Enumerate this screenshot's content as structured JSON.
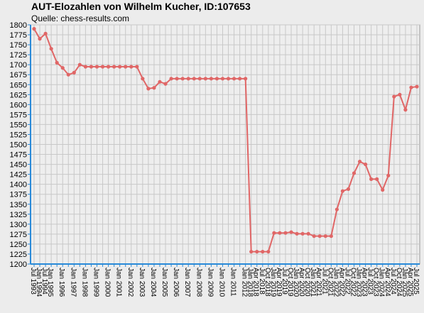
{
  "chart_data": {
    "type": "line",
    "title": "AUT-Elozahlen von Wilhelm Kucher, ID:107653",
    "subtitle": "Quelle: chess-results.com",
    "categories": [
      "Jul 1993",
      "Jan 1994",
      "Jul 1994",
      "Jan 1995",
      null,
      "Jan 1996",
      null,
      "Jan 1997",
      null,
      "Jan 1998",
      null,
      "Jan 1999",
      null,
      "Jan 2000",
      null,
      "Jan 2001",
      null,
      "Jan 2002",
      null,
      "Jan 2003",
      null,
      "Jan 2004",
      null,
      "Jan 2005",
      null,
      "Jan 2006",
      null,
      "Jan 2007",
      null,
      "Jan 2008",
      null,
      "Jan 2009",
      null,
      "Jan 2010",
      null,
      "Jan 2011",
      null,
      "Jan 2012",
      "Jan 2018",
      "Apr 2018",
      "Jul 2018",
      "Oct 2018",
      "Jan 2019",
      "Apr 2019",
      "Jul 2019",
      "Oct 2019",
      "Jan 2020",
      "Apr 2020",
      "Oct 2020",
      "Jan 2021",
      "Apr 2021",
      "Jul 2021",
      "Oct 2021",
      "Jan 2022",
      "Apr 2022",
      "Jul 2022",
      "Oct 2022",
      "Jan 2023",
      "Apr 2023",
      "Jul 2023",
      "Oct 2023",
      "Jan 2024",
      "Apr 2024",
      "Jul 2024",
      "Oct 2024",
      "Jan 2025",
      "Apr 2025",
      "Jul 2025"
    ],
    "series": [
      {
        "color": "#e06666",
        "values": [
          1790,
          1765,
          1778,
          1740,
          1705,
          1692,
          1675,
          1680,
          1700,
          1695,
          1695,
          1695,
          1695,
          1695,
          1695,
          1695,
          1695,
          1695,
          1695,
          1665,
          1640,
          1642,
          1657,
          1652,
          1665,
          1665,
          1665,
          1665,
          1665,
          1665,
          1665,
          1665,
          1665,
          1665,
          1665,
          1665,
          1665,
          1665,
          1231,
          1231,
          1231,
          1231,
          1278,
          1278,
          1278,
          1280,
          1276,
          1276,
          1276,
          1270,
          1270,
          1270,
          1270,
          1337,
          1383,
          1388,
          1428,
          1457,
          1450,
          1413,
          1413,
          1386,
          1422,
          1620,
          1625,
          1587,
          1643,
          1645
        ]
      }
    ],
    "ylim": [
      1200,
      1800
    ],
    "yticks": [
      1200,
      1225,
      1250,
      1275,
      1300,
      1325,
      1350,
      1375,
      1400,
      1425,
      1450,
      1475,
      1500,
      1525,
      1550,
      1575,
      1600,
      1625,
      1650,
      1675,
      1700,
      1725,
      1750,
      1775,
      1800
    ],
    "grid": true
  }
}
